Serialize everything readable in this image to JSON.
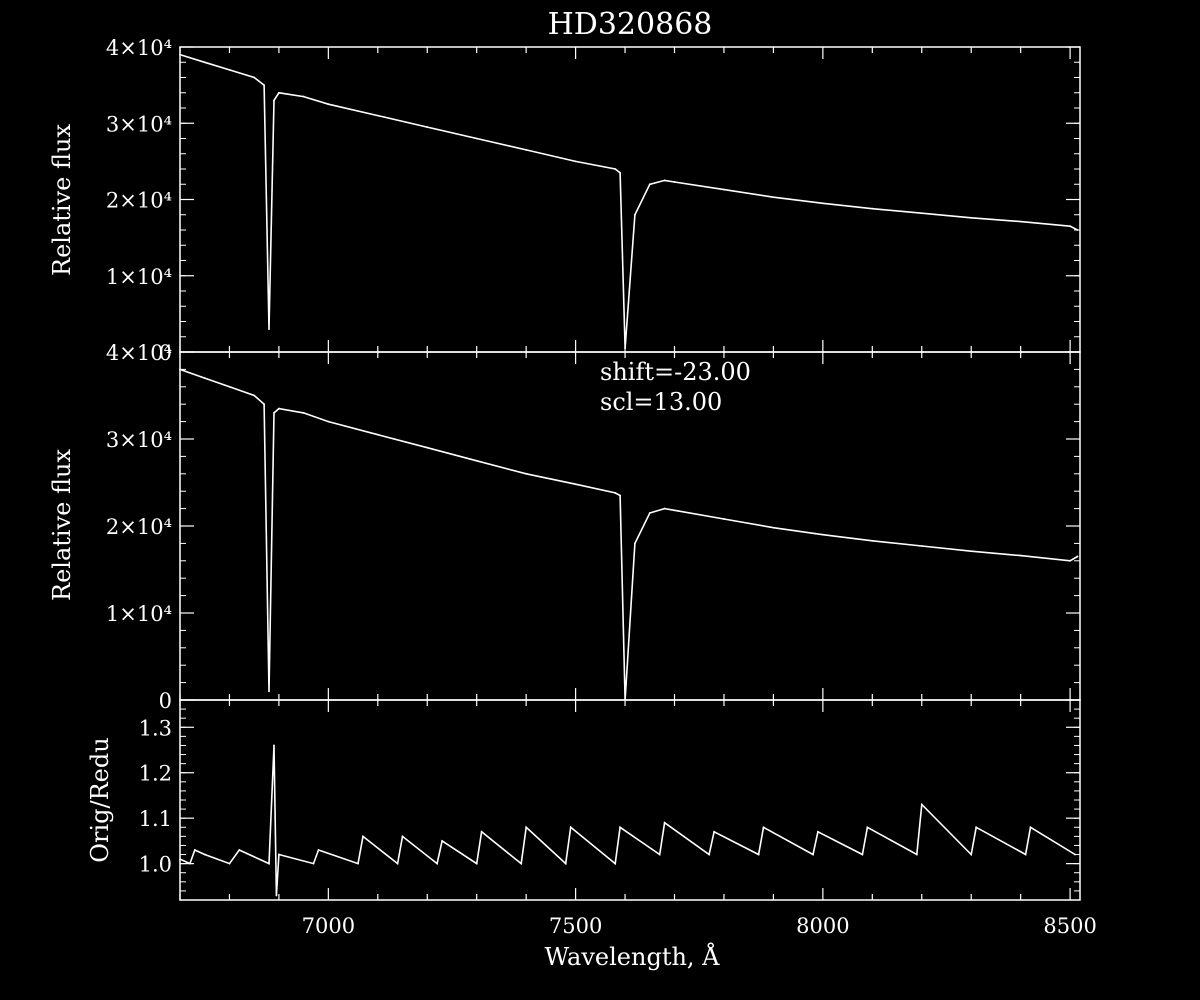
{
  "title": "HD320868",
  "x_axis": {
    "label": "Wavelength, Å",
    "range": [
      6700,
      8520
    ],
    "tick_labels": [
      "7000",
      "7500",
      "8000",
      "8500"
    ],
    "tick_values": [
      7000,
      7500,
      8000,
      8500
    ]
  },
  "annotation": {
    "shift": "shift=-23.00",
    "scl": "scl=13.00"
  },
  "colors": {
    "background": "#000000",
    "foreground": "#ffffff"
  },
  "chart_data": [
    {
      "type": "line",
      "panel": "top",
      "ylabel": "Relative flux",
      "ylim": [
        0,
        40000
      ],
      "ytick_values": [
        0,
        10000,
        20000,
        30000,
        40000
      ],
      "ytick_labels": [
        "0",
        "1×10⁴",
        "2×10⁴",
        "3×10⁴",
        "4×10⁴"
      ],
      "series": [
        {
          "x": [
            6700,
            6750,
            6800,
            6850,
            6870,
            6880,
            6890,
            6900,
            6950,
            7000,
            7100,
            7200,
            7300,
            7400,
            7500,
            7580,
            7590,
            7600,
            7620,
            7650,
            7680,
            7700,
            7800,
            7900,
            8000,
            8100,
            8200,
            8300,
            8400,
            8500,
            8515
          ],
          "y": [
            39000,
            38000,
            37000,
            36000,
            35000,
            3000,
            33000,
            34000,
            33500,
            32500,
            31000,
            29500,
            28000,
            26500,
            25000,
            24000,
            23500,
            500,
            18000,
            22000,
            22500,
            22300,
            21300,
            20300,
            19500,
            18800,
            18200,
            17600,
            17100,
            16500,
            16000
          ]
        }
      ]
    },
    {
      "type": "line",
      "panel": "middle",
      "ylabel": "Relative flux",
      "ylim": [
        0,
        40000
      ],
      "ytick_values": [
        0,
        10000,
        20000,
        30000,
        40000
      ],
      "ytick_labels": [
        "0",
        "1×10⁴",
        "2×10⁴",
        "3×10⁴",
        "4×10⁴"
      ],
      "series": [
        {
          "x": [
            6700,
            6750,
            6800,
            6850,
            6870,
            6880,
            6890,
            6900,
            6950,
            7000,
            7100,
            7200,
            7300,
            7400,
            7500,
            7580,
            7590,
            7600,
            7620,
            7650,
            7680,
            7700,
            7800,
            7900,
            8000,
            8100,
            8200,
            8300,
            8400,
            8500,
            8515
          ],
          "y": [
            38000,
            37000,
            36000,
            35000,
            34000,
            1000,
            33000,
            33500,
            33000,
            32000,
            30500,
            29000,
            27500,
            26000,
            24800,
            23800,
            23500,
            0,
            18000,
            21500,
            22000,
            21800,
            20800,
            19800,
            19000,
            18300,
            17700,
            17100,
            16600,
            16000,
            16500
          ]
        }
      ]
    },
    {
      "type": "line",
      "panel": "bottom",
      "ylabel": "Orig/Redu",
      "ylim": [
        0.92,
        1.36
      ],
      "ytick_values": [
        1.0,
        1.1,
        1.2,
        1.3
      ],
      "ytick_labels": [
        "1.0",
        "1.1",
        "1.2",
        "1.3"
      ],
      "series": [
        {
          "x": [
            6700,
            6720,
            6730,
            6750,
            6800,
            6820,
            6880,
            6890,
            6895,
            6900,
            6970,
            6980,
            7060,
            7070,
            7140,
            7150,
            7220,
            7230,
            7300,
            7310,
            7390,
            7400,
            7480,
            7490,
            7580,
            7590,
            7670,
            7680,
            7770,
            7780,
            7870,
            7880,
            7980,
            7990,
            8080,
            8090,
            8190,
            8200,
            8300,
            8310,
            8410,
            8420,
            8510
          ],
          "y": [
            1.01,
            1.0,
            1.03,
            1.02,
            1.0,
            1.03,
            1.0,
            1.26,
            0.93,
            1.02,
            1.0,
            1.03,
            1.0,
            1.06,
            1.0,
            1.06,
            1.0,
            1.05,
            1.0,
            1.07,
            1.0,
            1.08,
            1.0,
            1.08,
            1.0,
            1.08,
            1.02,
            1.09,
            1.02,
            1.07,
            1.02,
            1.08,
            1.02,
            1.07,
            1.02,
            1.08,
            1.02,
            1.13,
            1.02,
            1.08,
            1.02,
            1.08,
            1.02
          ]
        }
      ]
    }
  ]
}
